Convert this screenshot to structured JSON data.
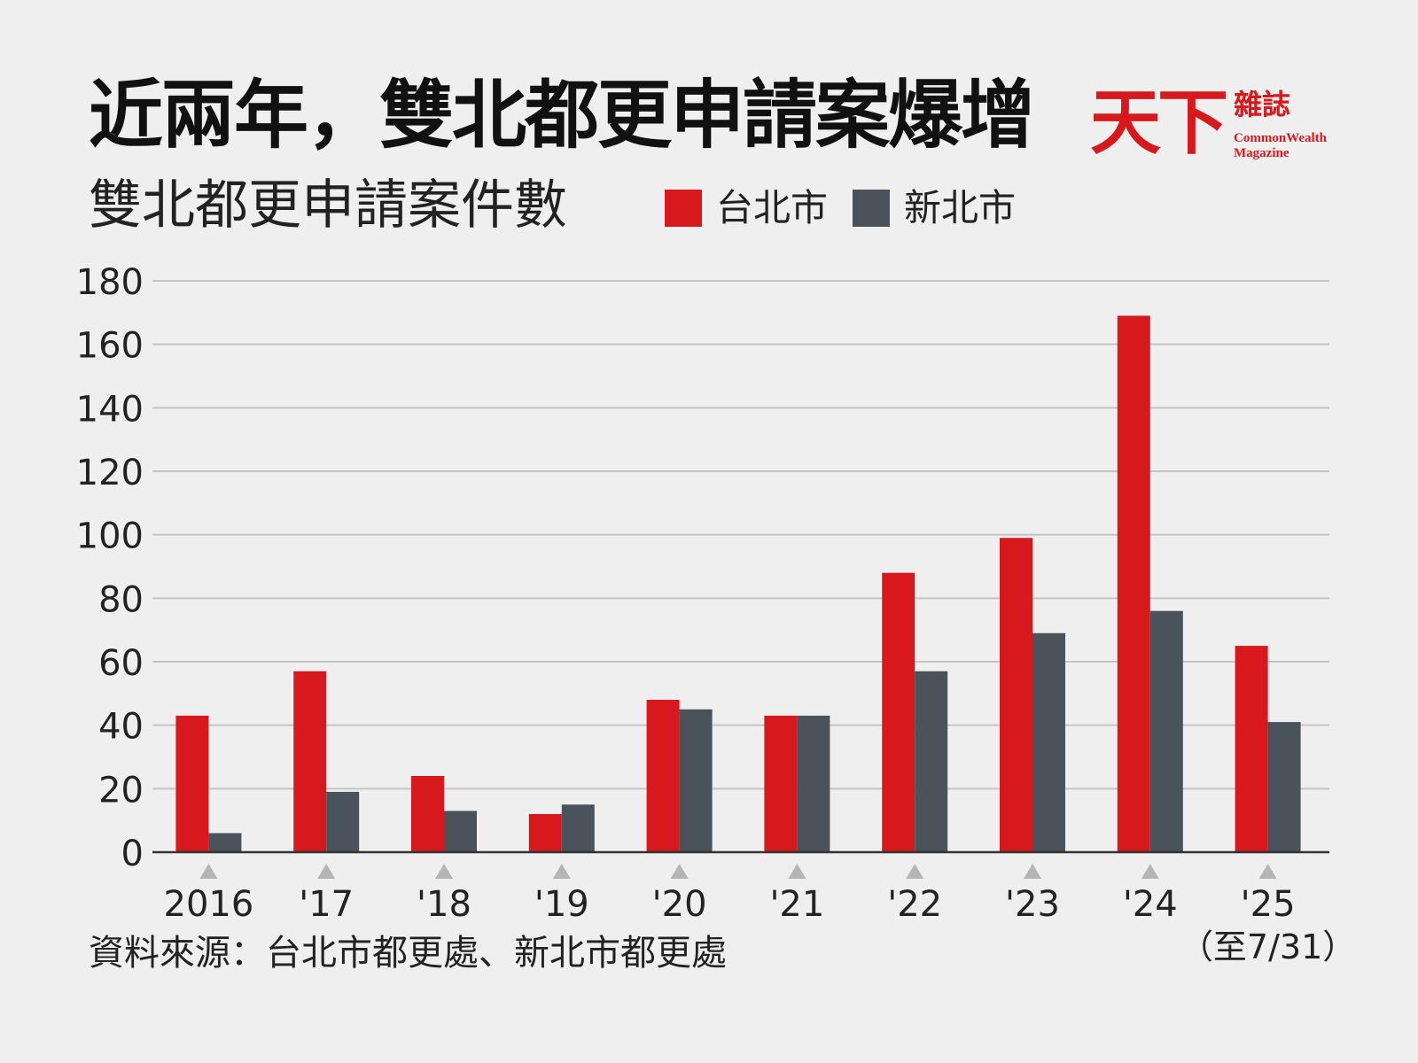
{
  "header": {
    "title": "近兩年，雙北都更申請案爆增",
    "subtitle": "雙北都更申請案件數"
  },
  "logo": {
    "main": "天下",
    "secondary": "雜誌",
    "english_line1": "CommonWealth",
    "english_line2": "Magazine"
  },
  "footer": {
    "source": "資料來源：台北市都更處、新北市都更處"
  },
  "colors": {
    "taipei": "#d7191d",
    "new_taipei": "#4a535b",
    "grid": "#c4c4c4",
    "axis": "#333333",
    "marker": "#b5b5b5"
  },
  "chart_data": {
    "type": "bar",
    "title": "雙北都更申請案件數",
    "categories": [
      "2016",
      "'17",
      "'18",
      "'19",
      "'20",
      "'21",
      "'22",
      "'23",
      "'24",
      "'25"
    ],
    "category_notes": [
      "",
      "",
      "",
      "",
      "",
      "",
      "",
      "",
      "",
      "（至7/31）"
    ],
    "series": [
      {
        "name": "台北市",
        "color": "#d7191d",
        "values": [
          43,
          57,
          24,
          12,
          48,
          43,
          88,
          99,
          169,
          65
        ]
      },
      {
        "name": "新北市",
        "color": "#4a535b",
        "values": [
          6,
          19,
          13,
          15,
          45,
          43,
          57,
          69,
          76,
          41
        ]
      }
    ],
    "yticks": [
      0,
      20,
      40,
      60,
      80,
      100,
      120,
      140,
      160,
      180
    ],
    "ylim": [
      0,
      180
    ],
    "xlabel": "",
    "ylabel": "",
    "grid": true,
    "legend": "top"
  }
}
